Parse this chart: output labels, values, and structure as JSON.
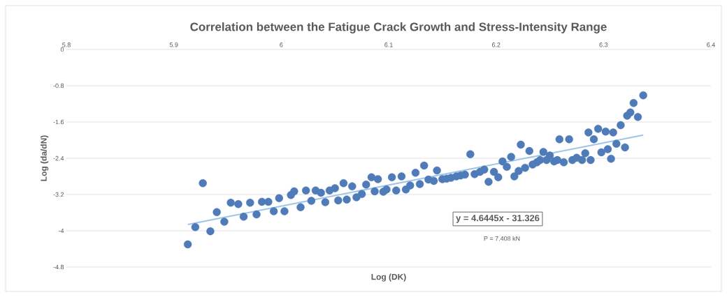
{
  "chart_data": {
    "type": "scatter",
    "title": "Correlation between the Fatigue Crack Growth and Stress-Intensity Range",
    "xlabel": "Log (DK)",
    "ylabel": "Log (da/dN)",
    "xlim": [
      5.8,
      6.4
    ],
    "ylim": [
      -4.8,
      0
    ],
    "xticks": [
      5.8,
      5.9,
      6,
      6.1,
      6.2,
      6.3,
      6.4
    ],
    "yticks": [
      0,
      -0.8,
      -1.6,
      -2.4,
      -3.2,
      -4,
      -4.8
    ],
    "grid": "y",
    "marker": "circle",
    "annotations": [
      "y = 4.6445x - 31.326",
      "P = 7.408 kN"
    ],
    "series": [
      {
        "color": "#4f7bb8",
        "x": [
          5.913,
          5.92,
          5.927,
          5.934,
          5.94,
          5.947,
          5.953,
          5.96,
          5.965,
          5.971,
          5.977,
          5.982,
          5.988,
          5.993,
          5.998,
          6.003,
          6.009,
          6.012,
          6.018,
          6.023,
          6.028,
          6.032,
          6.037,
          6.041,
          6.045,
          6.05,
          6.053,
          6.058,
          6.061,
          6.066,
          6.07,
          6.075,
          6.079,
          6.084,
          6.087,
          6.09,
          6.095,
          6.098,
          6.103,
          6.107,
          6.112,
          6.116,
          6.12,
          6.125,
          6.129,
          6.133,
          6.137,
          6.142,
          6.145,
          6.15,
          6.154,
          6.158,
          6.163,
          6.167,
          6.171,
          6.176,
          6.18,
          6.185,
          6.189,
          6.193,
          6.198,
          6.202,
          6.206,
          6.21,
          6.214,
          6.217,
          6.221,
          6.223,
          6.227,
          6.231,
          6.234,
          6.238,
          6.241,
          6.244,
          6.247,
          6.25,
          6.254,
          6.257,
          6.259,
          6.263,
          6.268,
          6.271,
          6.275,
          6.28,
          6.283,
          6.286,
          6.288,
          6.291,
          6.295,
          6.298,
          6.302,
          6.304,
          6.307,
          6.309,
          6.312,
          6.316,
          6.32,
          6.322,
          6.325,
          6.328,
          6.332,
          6.337
        ],
        "values": [
          -4.3,
          -3.92,
          -2.95,
          -4.01,
          -3.59,
          -3.8,
          -3.38,
          -3.41,
          -3.69,
          -3.38,
          -3.64,
          -3.36,
          -3.36,
          -3.57,
          -3.28,
          -3.57,
          -3.21,
          -3.13,
          -3.48,
          -3.11,
          -3.34,
          -3.11,
          -3.16,
          -3.37,
          -3.11,
          -3.06,
          -3.33,
          -2.95,
          -3.31,
          -3.02,
          -3.26,
          -3.19,
          -2.98,
          -2.82,
          -3.13,
          -2.86,
          -3.14,
          -3.09,
          -2.82,
          -3.11,
          -2.8,
          -3.09,
          -3.0,
          -2.72,
          -2.97,
          -2.56,
          -2.87,
          -2.9,
          -2.67,
          -2.86,
          -2.85,
          -2.83,
          -2.8,
          -2.78,
          -2.76,
          -2.31,
          -2.75,
          -2.7,
          -2.65,
          -2.92,
          -2.7,
          -2.82,
          -2.47,
          -2.59,
          -2.37,
          -2.8,
          -2.68,
          -2.1,
          -2.61,
          -2.24,
          -2.54,
          -2.49,
          -2.44,
          -2.26,
          -2.44,
          -2.34,
          -2.47,
          -2.44,
          -1.98,
          -2.49,
          -1.98,
          -2.44,
          -2.39,
          -2.44,
          -2.29,
          -1.83,
          -2.44,
          -1.98,
          -1.75,
          -2.27,
          -1.81,
          -2.2,
          -2.41,
          -1.83,
          -2.08,
          -1.67,
          -2.16,
          -1.46,
          -1.39,
          -1.18,
          -1.49,
          -1.01
        ]
      },
      {
        "type": "line",
        "color": "#9ec5e8",
        "marker": "none",
        "x": [
          5.913,
          6.337
        ],
        "values": [
          -3.86,
          -1.89
        ]
      }
    ]
  }
}
